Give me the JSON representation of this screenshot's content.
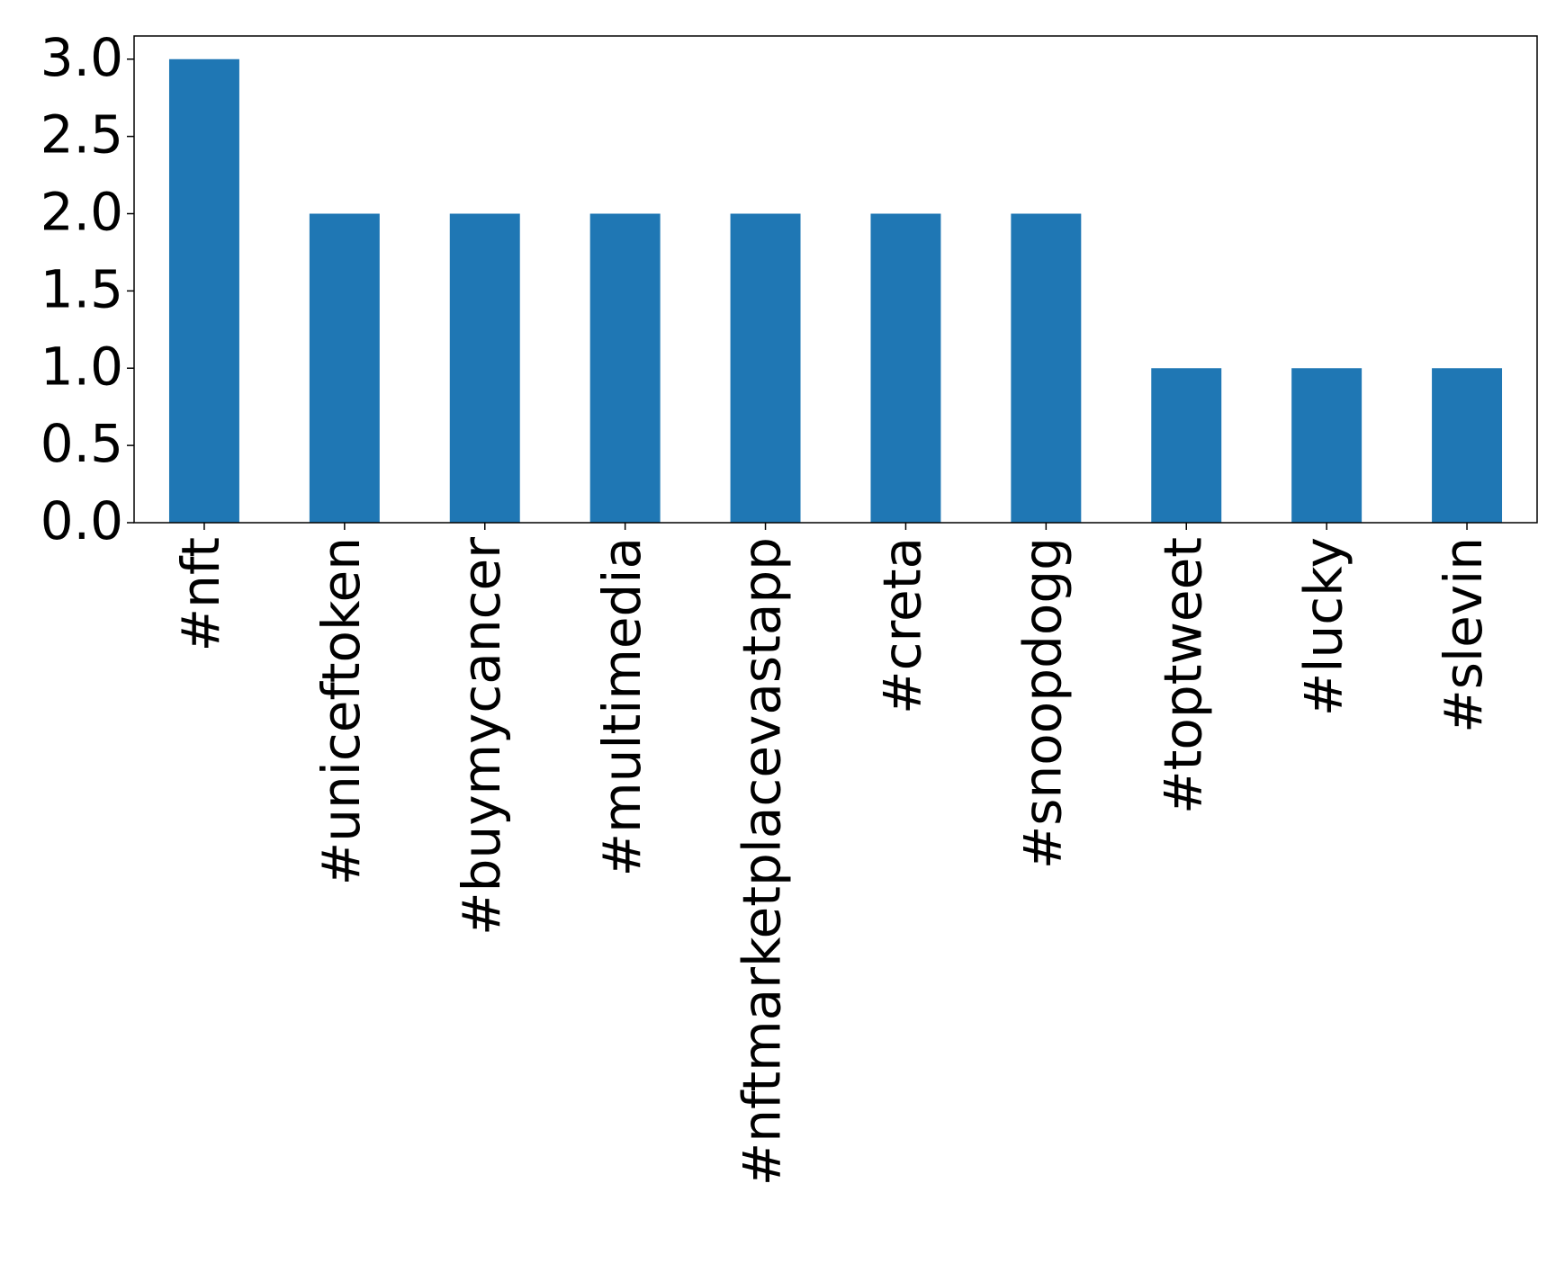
{
  "chart_data": {
    "type": "bar",
    "categories": [
      "#nft",
      "#uniceftoken",
      "#buymycancer",
      "#multimedia",
      "#nftmarketplacevastapp",
      "#creta",
      "#snoopdogg",
      "#toptweet",
      "#lucky",
      "#slevin"
    ],
    "values": [
      3,
      2,
      2,
      2,
      2,
      2,
      2,
      1,
      1,
      1
    ],
    "color": "#1f77b4",
    "ylim": [
      0,
      3.15
    ],
    "yticks": [
      {
        "value": 0,
        "label": "0.0"
      },
      {
        "value": 0.5,
        "label": "0.5"
      },
      {
        "value": 1,
        "label": "1.0"
      },
      {
        "value": 1.5,
        "label": "1.5"
      },
      {
        "value": 2,
        "label": "2.0"
      },
      {
        "value": 2.5,
        "label": "2.5"
      },
      {
        "value": 3,
        "label": "3.0"
      }
    ],
    "grid": false
  }
}
